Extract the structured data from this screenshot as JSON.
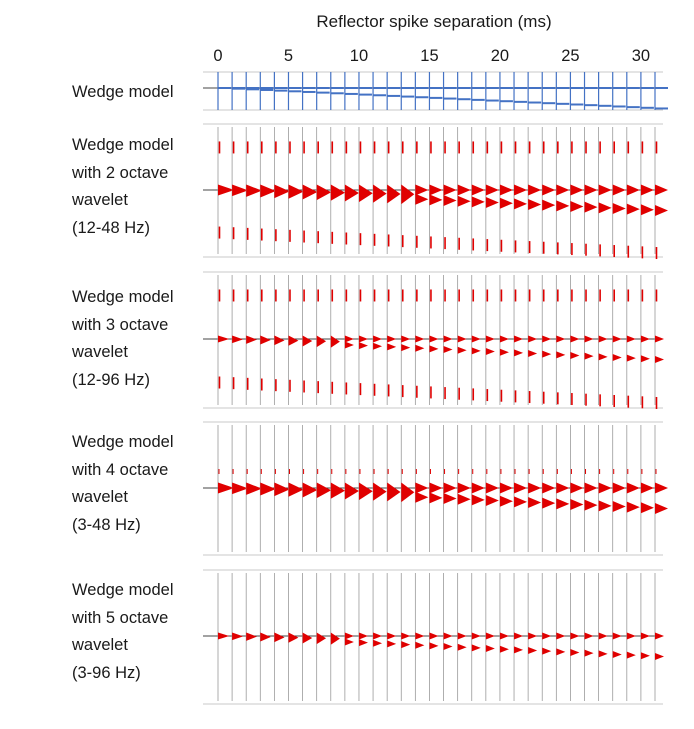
{
  "chart_data": {
    "type": "wiggle-trace panels",
    "xlabel": "Reflector spike separation (ms)",
    "xlim": [
      0,
      31
    ],
    "xticks": [
      0,
      5,
      10,
      15,
      20,
      25,
      30
    ],
    "trace_count": 32,
    "trace_spacing_ms": 1,
    "colors": {
      "model": "#4472c4",
      "wavelet_fill": "#e00000",
      "trace_line": "#9a9a9a",
      "frame": "#c8c8c8"
    },
    "panels": [
      {
        "id": "wedge",
        "label": "Wedge model",
        "kind": "spikes"
      },
      {
        "id": "oct2",
        "label": "Wedge model\nwith 2 octave\nwavelet\n(12-48 Hz)",
        "octaves": 2,
        "band_hz": [
          12,
          48
        ],
        "kind": "wavelet",
        "side_lobes": true
      },
      {
        "id": "oct3",
        "label": "Wedge model\nwith 3 octave\nwavelet\n(12-96 Hz)",
        "octaves": 3,
        "band_hz": [
          12,
          96
        ],
        "kind": "wavelet",
        "side_lobes": true
      },
      {
        "id": "oct4",
        "label": "Wedge model\nwith 4 octave\nwavelet\n(3-48 Hz)",
        "octaves": 4,
        "band_hz": [
          3,
          48
        ],
        "kind": "wavelet",
        "side_lobes": false
      },
      {
        "id": "oct5",
        "label": "Wedge model\nwith 5 octave\nwavelet\n(3-96 Hz)",
        "octaves": 5,
        "band_hz": [
          3,
          96
        ],
        "kind": "wavelet",
        "side_lobes": false
      }
    ]
  }
}
